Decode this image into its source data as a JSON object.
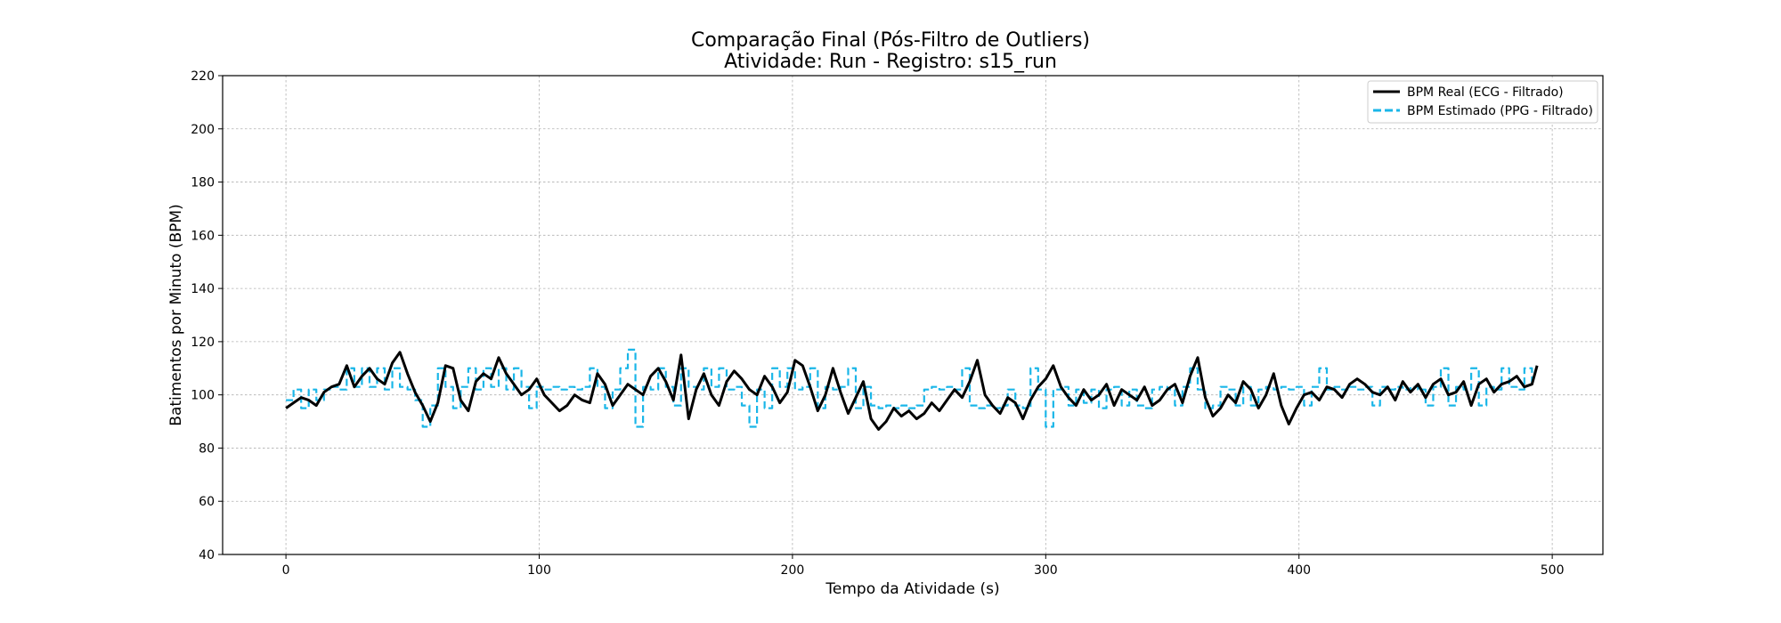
{
  "chart_data": {
    "type": "line",
    "title": "Comparação Final (Pós-Filtro de Outliers)",
    "subtitle": "Atividade: Run - Registro: s15_run",
    "xlabel": "Tempo da Atividade (s)",
    "ylabel": "Batimentos por Minuto (BPM)",
    "xlim": [
      -25,
      520
    ],
    "ylim": [
      40,
      220
    ],
    "xticks": [
      0,
      100,
      200,
      300,
      400,
      500
    ],
    "yticks": [
      40,
      60,
      80,
      100,
      120,
      140,
      160,
      180,
      200,
      220
    ],
    "grid": true,
    "legend_position": "top-right",
    "series": [
      {
        "name": "BPM Real (ECG - Filtrado)",
        "color": "#000000",
        "style": "solid",
        "x": [
          0,
          3,
          6,
          9,
          12,
          15,
          18,
          21,
          24,
          27,
          30,
          33,
          36,
          39,
          42,
          45,
          48,
          51,
          54,
          57,
          60,
          63,
          66,
          69,
          72,
          75,
          78,
          81,
          84,
          87,
          90,
          93,
          96,
          99,
          102,
          105,
          108,
          111,
          114,
          117,
          120,
          123,
          126,
          129,
          132,
          135,
          138,
          141,
          144,
          147,
          150,
          153,
          156,
          159,
          162,
          165,
          168,
          171,
          174,
          177,
          180,
          183,
          186,
          189,
          192,
          195,
          198,
          201,
          204,
          207,
          210,
          213,
          216,
          219,
          222,
          225,
          228,
          231,
          234,
          237,
          240,
          243,
          246,
          249,
          252,
          255,
          258,
          261,
          264,
          267,
          270,
          273,
          276,
          279,
          282,
          285,
          288,
          291,
          294,
          297,
          300,
          303,
          306,
          309,
          312,
          315,
          318,
          321,
          324,
          327,
          330,
          333,
          336,
          339,
          342,
          345,
          348,
          351,
          354,
          357,
          360,
          363,
          366,
          369,
          372,
          375,
          378,
          381,
          384,
          387,
          390,
          393,
          396,
          399,
          402,
          405,
          408,
          411,
          414,
          417,
          420,
          423,
          426,
          429,
          432,
          435,
          438,
          441,
          444,
          447,
          450,
          453,
          456,
          459,
          462,
          465,
          468,
          471,
          474,
          477,
          480,
          483,
          486,
          489,
          492,
          494
        ],
        "y": [
          95,
          97,
          99,
          98,
          96,
          101,
          103,
          104,
          111,
          103,
          107,
          110,
          106,
          104,
          112,
          116,
          108,
          101,
          96,
          90,
          97,
          111,
          110,
          98,
          94,
          105,
          108,
          106,
          114,
          108,
          104,
          100,
          102,
          106,
          100,
          97,
          94,
          96,
          100,
          98,
          97,
          108,
          104,
          96,
          100,
          104,
          102,
          100,
          107,
          110,
          105,
          98,
          115,
          91,
          102,
          108,
          100,
          96,
          105,
          109,
          106,
          102,
          100,
          107,
          103,
          97,
          101,
          113,
          111,
          103,
          94,
          100,
          110,
          101,
          93,
          99,
          105,
          91,
          87,
          90,
          95,
          92,
          94,
          91,
          93,
          97,
          94,
          98,
          102,
          99,
          105,
          113,
          100,
          96,
          93,
          99,
          97,
          91,
          98,
          103,
          106,
          111,
          103,
          99,
          96,
          102,
          98,
          100,
          104,
          96,
          102,
          100,
          98,
          103,
          96,
          98,
          102,
          104,
          97,
          107,
          114,
          99,
          92,
          95,
          100,
          97,
          105,
          102,
          95,
          100,
          108,
          96,
          89,
          95,
          100,
          101,
          98,
          103,
          102,
          99,
          104,
          106,
          104,
          101,
          100,
          103,
          98,
          105,
          101,
          104,
          99,
          104,
          106,
          100,
          101,
          105,
          96,
          104,
          106,
          101,
          104,
          105,
          107,
          103,
          104,
          111
        ]
      },
      {
        "name": "BPM Estimado (PPG - Filtrado)",
        "color": "#1ab6e8",
        "style": "dashed",
        "x": [
          0,
          3,
          6,
          9,
          12,
          15,
          18,
          21,
          24,
          27,
          30,
          33,
          36,
          39,
          42,
          45,
          48,
          51,
          54,
          57,
          60,
          63,
          66,
          69,
          72,
          75,
          78,
          81,
          84,
          87,
          90,
          93,
          96,
          99,
          102,
          105,
          108,
          111,
          114,
          117,
          120,
          123,
          126,
          129,
          132,
          135,
          138,
          141,
          144,
          147,
          150,
          153,
          156,
          159,
          162,
          165,
          168,
          171,
          174,
          177,
          180,
          183,
          186,
          189,
          192,
          195,
          198,
          201,
          204,
          207,
          210,
          213,
          216,
          219,
          222,
          225,
          228,
          231,
          234,
          237,
          240,
          243,
          246,
          249,
          252,
          255,
          258,
          261,
          264,
          267,
          270,
          273,
          276,
          279,
          282,
          285,
          288,
          291,
          294,
          297,
          300,
          303,
          306,
          309,
          312,
          315,
          318,
          321,
          324,
          327,
          330,
          333,
          336,
          339,
          342,
          345,
          348,
          351,
          354,
          357,
          360,
          363,
          366,
          369,
          372,
          375,
          378,
          381,
          384,
          387,
          390,
          393,
          396,
          399,
          402,
          405,
          408,
          411,
          414,
          417,
          420,
          423,
          426,
          429,
          432,
          435,
          438,
          441,
          444,
          447,
          450,
          453,
          456,
          459,
          462,
          465,
          468,
          471,
          474,
          477,
          480,
          483,
          486,
          489,
          492
        ],
        "y": [
          98,
          102,
          95,
          102,
          98,
          102,
          103,
          102,
          110,
          103,
          110,
          103,
          110,
          102,
          110,
          103,
          102,
          98,
          88,
          96,
          110,
          103,
          95,
          103,
          110,
          102,
          110,
          103,
          110,
          102,
          110,
          103,
          95,
          103,
          102,
          103,
          102,
          103,
          102,
          103,
          110,
          103,
          95,
          102,
          110,
          117,
          88,
          103,
          102,
          110,
          103,
          96,
          110,
          103,
          102,
          110,
          103,
          110,
          102,
          103,
          96,
          88,
          102,
          95,
          110,
          103,
          110,
          102,
          103,
          110,
          95,
          103,
          102,
          103,
          110,
          95,
          103,
          96,
          95,
          96,
          95,
          96,
          95,
          96,
          102,
          103,
          102,
          103,
          102,
          110,
          96,
          95,
          96,
          95,
          96,
          102,
          96,
          95,
          110,
          102,
          88,
          102,
          103,
          96,
          102,
          97,
          102,
          95,
          102,
          103,
          96,
          102,
          96,
          95,
          102,
          103,
          102,
          96,
          103,
          110,
          102,
          95,
          96,
          103,
          102,
          96,
          103,
          96,
          102,
          103,
          102,
          103,
          102,
          103,
          96,
          103,
          110,
          102,
          103,
          102,
          103,
          102,
          103,
          96,
          103,
          102,
          103,
          102,
          103,
          102,
          96,
          103,
          110,
          96,
          103,
          102,
          110,
          96,
          103,
          102,
          110,
          103,
          102,
          110,
          103
        ]
      }
    ]
  }
}
